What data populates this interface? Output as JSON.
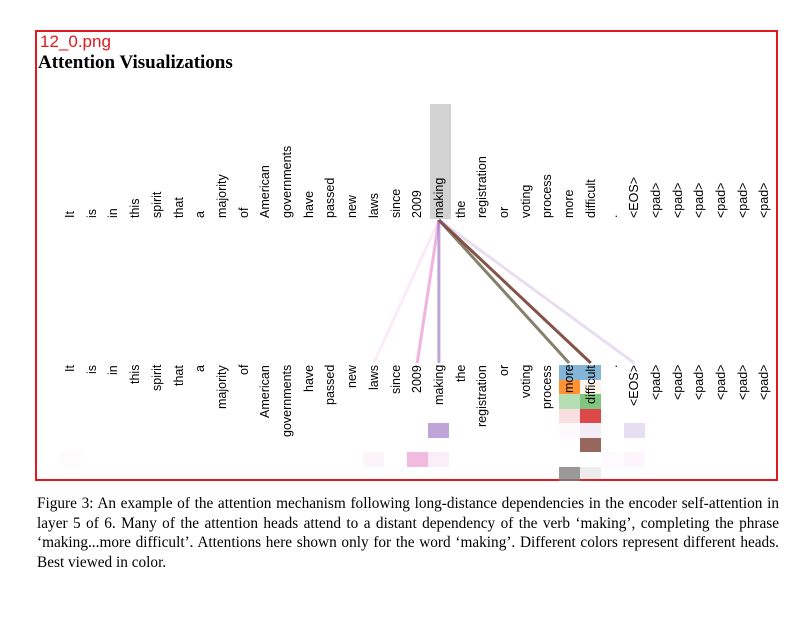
{
  "file_label": "12_0.png",
  "title": "Attention Visualizations",
  "tokens": [
    "It",
    "is",
    "in",
    "this",
    "spirit",
    "that",
    "a",
    "majority",
    "of",
    "American",
    "governments",
    "have",
    "passed",
    "new",
    "laws",
    "since",
    "2009",
    "making",
    "the",
    "registration",
    "or",
    "voting",
    "process",
    "more",
    "difficult",
    ".",
    "<EOS>",
    "<pad>",
    "<pad>",
    "<pad>",
    "<pad>",
    "<pad>",
    "<pad>"
  ],
  "query_token": "making",
  "colors": {
    "frame": "#e0191f",
    "highlight": "#d3d3d3"
  },
  "heads": [
    {
      "color": "#1f77b4",
      "weights": {
        "more": 0.55,
        "difficult": 0.55
      }
    },
    {
      "color": "#ff7f0e",
      "weights": {
        "more": 0.85,
        "difficult": 0.08
      }
    },
    {
      "color": "#2ca02c",
      "weights": {
        "more": 0.35,
        "difficult": 0.6
      }
    },
    {
      "color": "#d62728",
      "weights": {
        "more": 0.15,
        "difficult": 0.85
      }
    },
    {
      "color": "#9467bd",
      "weights": {
        "making": 0.6,
        "more": 0.03,
        "difficult": 0.12,
        "<EOS>": 0.22
      }
    },
    {
      "color": "#8c564b",
      "weights": {
        "difficult": 0.9
      }
    },
    {
      "color": "#e377c2",
      "weights": {
        "It": 0.03,
        "laws": 0.08,
        "2009": 0.5,
        "making": 0.12,
        ".": 0.04,
        "<EOS>": 0.07
      }
    },
    {
      "color": "#7f7f7f",
      "weights": {
        "more": 0.8,
        "difficult": 0.15
      }
    }
  ],
  "links": [
    {
      "to": "laws",
      "color": "#e377c2",
      "opacity": 0.15
    },
    {
      "to": "2009",
      "color": "#e377c2",
      "opacity": 0.55
    },
    {
      "to": "making",
      "color": "#9467bd",
      "opacity": 0.6
    },
    {
      "to": "more",
      "color": "#7f7a63",
      "opacity": 0.95
    },
    {
      "to": "difficult",
      "color": "#7d4a3f",
      "opacity": 0.95
    },
    {
      "to": "<EOS>",
      "color": "#9467bd",
      "opacity": 0.22
    }
  ],
  "caption": "Figure 3: An example of the attention mechanism following long-distance dependencies in the encoder self-attention in layer 5 of 6. Many of the attention heads attend to a distant dependency of the verb ‘making’, completing the phrase ‘making...more difficult’. Attentions here shown only for the word ‘making’. Different colors represent different heads. Best viewed in color."
}
